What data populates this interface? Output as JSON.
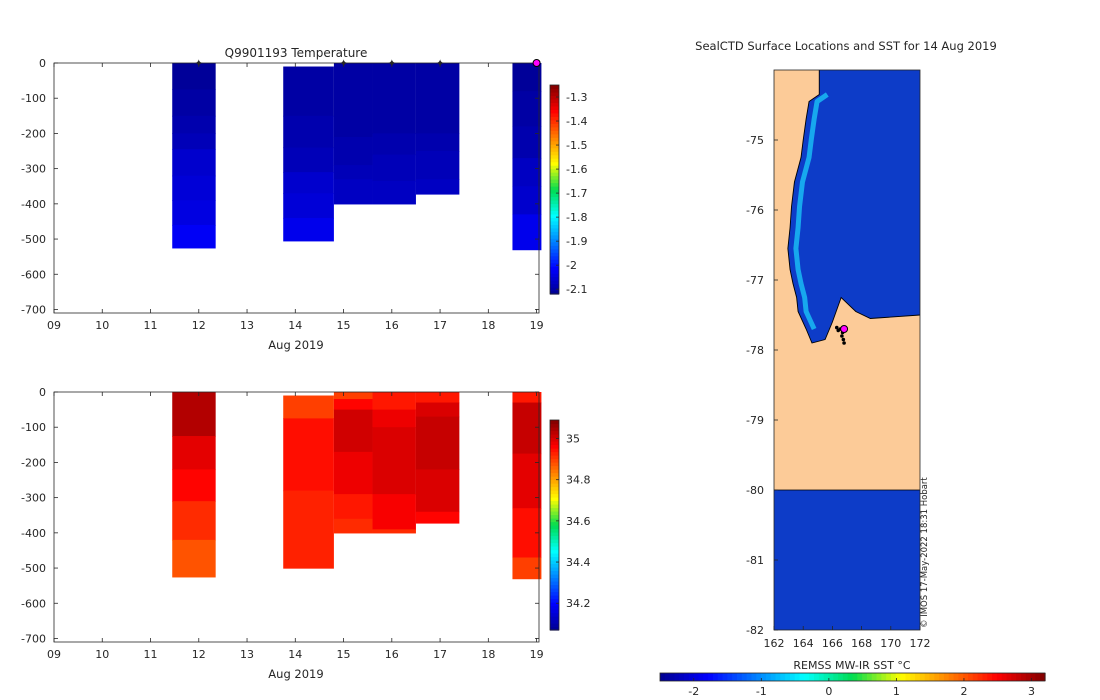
{
  "chart_data": [
    {
      "type": "heatmap",
      "panel": "temperature-section",
      "title": "Q9901193  Temperature",
      "xlabel": "Aug 2019",
      "x_ticks": [
        "09",
        "10",
        "11",
        "12",
        "13",
        "14",
        "15",
        "16",
        "17",
        "18",
        "19"
      ],
      "xlim": [
        9,
        19.05
      ],
      "y_ticks": [
        0,
        -100,
        -200,
        -300,
        -400,
        -500,
        -600,
        -700
      ],
      "ylim": [
        -710,
        0
      ],
      "colorbar": {
        "min": -2.12,
        "max": -1.25,
        "ticks": [
          -1.3,
          -1.4,
          -1.5,
          -1.6,
          -1.7,
          -1.8,
          -1.9,
          -2,
          -2.1
        ],
        "colormap": "parula-jet"
      },
      "profiles": [
        {
          "x0": 11.45,
          "x1": 12.35,
          "depth_bins": [
            [
              0,
              75,
              -2.11
            ],
            [
              75,
              150,
              -2.1
            ],
            [
              150,
              200,
              -2.09
            ],
            [
              200,
              245,
              -2.08
            ],
            [
              245,
              320,
              -2.06
            ],
            [
              320,
              390,
              -2.05
            ],
            [
              390,
              460,
              -2.04
            ],
            [
              460,
              525,
              -2.02
            ]
          ]
        },
        {
          "x0": 13.75,
          "x1": 14.8,
          "depth_bins": [
            [
              10,
              150,
              -2.1
            ],
            [
              150,
              240,
              -2.09
            ],
            [
              240,
              310,
              -2.08
            ],
            [
              310,
              370,
              -2.06
            ],
            [
              370,
              440,
              -2.05
            ],
            [
              440,
              505,
              -2.03
            ]
          ]
        },
        {
          "x0": 14.8,
          "x1": 15.6,
          "depth_bins": [
            [
              0,
              210,
              -2.1
            ],
            [
              210,
              290,
              -2.09
            ],
            [
              290,
              330,
              -2.08
            ],
            [
              330,
              400,
              -2.07
            ]
          ]
        },
        {
          "x0": 15.6,
          "x1": 16.5,
          "depth_bins": [
            [
              0,
              200,
              -2.1
            ],
            [
              200,
              260,
              -2.09
            ],
            [
              260,
              335,
              -2.08
            ],
            [
              335,
              400,
              -2.07
            ]
          ]
        },
        {
          "x0": 16.5,
          "x1": 17.4,
          "depth_bins": [
            [
              0,
              200,
              -2.1
            ],
            [
              200,
              250,
              -2.09
            ],
            [
              250,
              330,
              -2.08
            ],
            [
              330,
              372,
              -2.07
            ]
          ]
        },
        {
          "x0": 18.5,
          "x1": 19.1,
          "depth_bins": [
            [
              0,
              80,
              -2.11
            ],
            [
              80,
              180,
              -2.1
            ],
            [
              180,
              270,
              -2.09
            ],
            [
              270,
              350,
              -2.07
            ],
            [
              350,
              430,
              -2.06
            ],
            [
              430,
              530,
              -2.03
            ]
          ]
        }
      ],
      "surface_markers": [
        12,
        15,
        16,
        17,
        19
      ],
      "latest_marker": 19
    },
    {
      "type": "heatmap",
      "panel": "salinity-section",
      "title": "",
      "xlabel": "Aug 2019",
      "x_ticks": [
        "09",
        "10",
        "11",
        "12",
        "13",
        "14",
        "15",
        "16",
        "17",
        "18",
        "19"
      ],
      "xlim": [
        9,
        19.05
      ],
      "y_ticks": [
        0,
        -100,
        -200,
        -300,
        -400,
        -500,
        -600,
        -700
      ],
      "ylim": [
        -710,
        0
      ],
      "colorbar": {
        "min": 34.07,
        "max": 35.09,
        "ticks": [
          35,
          34.8,
          34.6,
          34.4,
          34.2
        ],
        "colormap": "parula-jet"
      },
      "profiles": [
        {
          "x0": 11.45,
          "x1": 12.35,
          "depth_bins": [
            [
              0,
              125,
              35.04
            ],
            [
              125,
              220,
              34.99
            ],
            [
              220,
              310,
              34.96
            ],
            [
              310,
              420,
              34.92
            ],
            [
              420,
              525,
              34.88
            ]
          ]
        },
        {
          "x0": 13.75,
          "x1": 14.8,
          "depth_bins": [
            [
              10,
              75,
              34.9
            ],
            [
              75,
              280,
              34.95
            ],
            [
              280,
              500,
              34.93
            ]
          ]
        },
        {
          "x0": 14.8,
          "x1": 15.6,
          "depth_bins": [
            [
              0,
              20,
              34.9
            ],
            [
              20,
              50,
              34.96
            ],
            [
              50,
              170,
              35.01
            ],
            [
              170,
              290,
              34.98
            ],
            [
              290,
              360,
              34.94
            ],
            [
              360,
              400,
              34.92
            ]
          ]
        },
        {
          "x0": 15.6,
          "x1": 16.5,
          "depth_bins": [
            [
              0,
              50,
              34.94
            ],
            [
              50,
              100,
              34.98
            ],
            [
              100,
              290,
              35.0
            ],
            [
              290,
              390,
              34.97
            ],
            [
              390,
              400,
              34.92
            ]
          ]
        },
        {
          "x0": 16.5,
          "x1": 17.4,
          "depth_bins": [
            [
              0,
              30,
              34.94
            ],
            [
              30,
              70,
              35.0
            ],
            [
              70,
              220,
              35.02
            ],
            [
              220,
              340,
              35.0
            ],
            [
              340,
              372,
              34.96
            ]
          ]
        },
        {
          "x0": 18.5,
          "x1": 19.1,
          "depth_bins": [
            [
              0,
              30,
              34.94
            ],
            [
              30,
              175,
              35.02
            ],
            [
              175,
              330,
              34.99
            ],
            [
              330,
              470,
              34.95
            ],
            [
              470,
              530,
              34.9
            ]
          ]
        }
      ]
    },
    {
      "type": "heatmap",
      "panel": "sst-map",
      "title": "SealCTD Surface Locations and SST for 14 Aug 2019",
      "xlabel": "",
      "x_ticks": [
        162,
        164,
        166,
        168,
        170,
        172
      ],
      "xlim": [
        162,
        172
      ],
      "y_ticks": [
        -75,
        -76,
        -77,
        -78,
        -79,
        -80,
        -81,
        -82
      ],
      "ylim": [
        -82,
        -74
      ],
      "colorbar": {
        "label": "REMSS MW-IR SST °C",
        "min": -2.5,
        "max": 3.2,
        "ticks": [
          -2,
          -1,
          0,
          1,
          2,
          3
        ],
        "colormap": "jet",
        "orientation": "horizontal"
      },
      "watermark": "© IMOS 17-May-2022 18:31 Hobart",
      "land_color": "#fccb98",
      "ocean_color": "#0d3cc8",
      "ice_shelf_lat": -80,
      "coast_points": [
        [
          165.1,
          -74.0
        ],
        [
          165.1,
          -74.35
        ],
        [
          164.4,
          -74.45
        ],
        [
          164.2,
          -74.7
        ],
        [
          164.0,
          -75.0
        ],
        [
          163.85,
          -75.25
        ],
        [
          163.4,
          -75.6
        ],
        [
          163.2,
          -75.95
        ],
        [
          163.1,
          -76.25
        ],
        [
          162.95,
          -76.55
        ],
        [
          163.1,
          -76.85
        ],
        [
          163.3,
          -77.05
        ],
        [
          163.55,
          -77.25
        ],
        [
          163.65,
          -77.45
        ],
        [
          164.2,
          -77.7
        ],
        [
          164.6,
          -77.9
        ],
        [
          165.5,
          -77.85
        ],
        [
          166.0,
          -77.6
        ],
        [
          166.6,
          -77.25
        ],
        [
          167.6,
          -77.45
        ],
        [
          168.6,
          -77.55
        ],
        [
          172,
          -77.5
        ]
      ],
      "seal_tracks": [
        [
          166.3,
          -77.68
        ],
        [
          166.4,
          -77.72
        ],
        [
          166.55,
          -77.7
        ],
        [
          166.7,
          -77.75
        ],
        [
          166.65,
          -77.8
        ],
        [
          166.75,
          -77.85
        ],
        [
          166.8,
          -77.9
        ]
      ],
      "latest_location": [
        166.8,
        -77.7
      ]
    }
  ]
}
